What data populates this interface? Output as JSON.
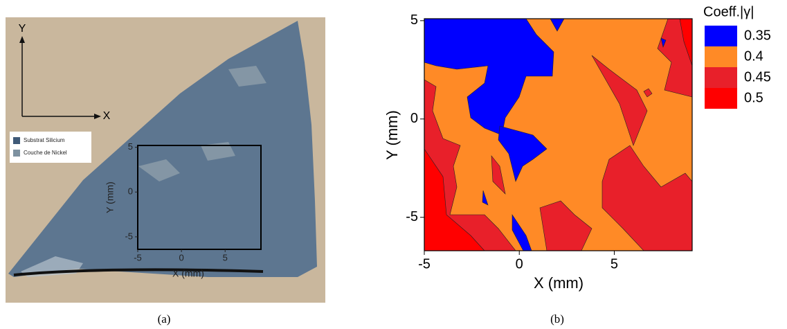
{
  "chart_data": [
    {
      "type": "image-overlay",
      "caption": "(a)",
      "x_arrow": "X",
      "y_arrow": "Y",
      "legend": [
        {
          "name": "Substrat Silicium",
          "color": "#3f5a78"
        },
        {
          "name": "Couche de Nickel",
          "color": "#7d91a0"
        }
      ],
      "xlabel": "X (mm)",
      "ylabel": "Y (mm)",
      "xlim": [
        -5,
        9.1
      ],
      "ylim": [
        -6.4,
        5.2
      ],
      "xticks": [
        -5,
        0,
        5
      ],
      "yticks": [
        -5,
        0,
        5
      ]
    },
    {
      "type": "contour",
      "caption": "(b)",
      "xlabel": "X (mm)",
      "ylabel": "Y (mm)",
      "xlim": [
        -5,
        9.1
      ],
      "ylim": [
        -6.7,
        5.1
      ],
      "xticks": [
        -5,
        0,
        5
      ],
      "yticks": [
        -5,
        0,
        5
      ],
      "legend_title": "Coeff.|γ|",
      "levels": [
        0.35,
        0.4,
        0.45,
        0.5
      ],
      "colors": [
        "#0000ff",
        "#ff8a26",
        "#e8202a",
        "#ff0000"
      ]
    }
  ]
}
